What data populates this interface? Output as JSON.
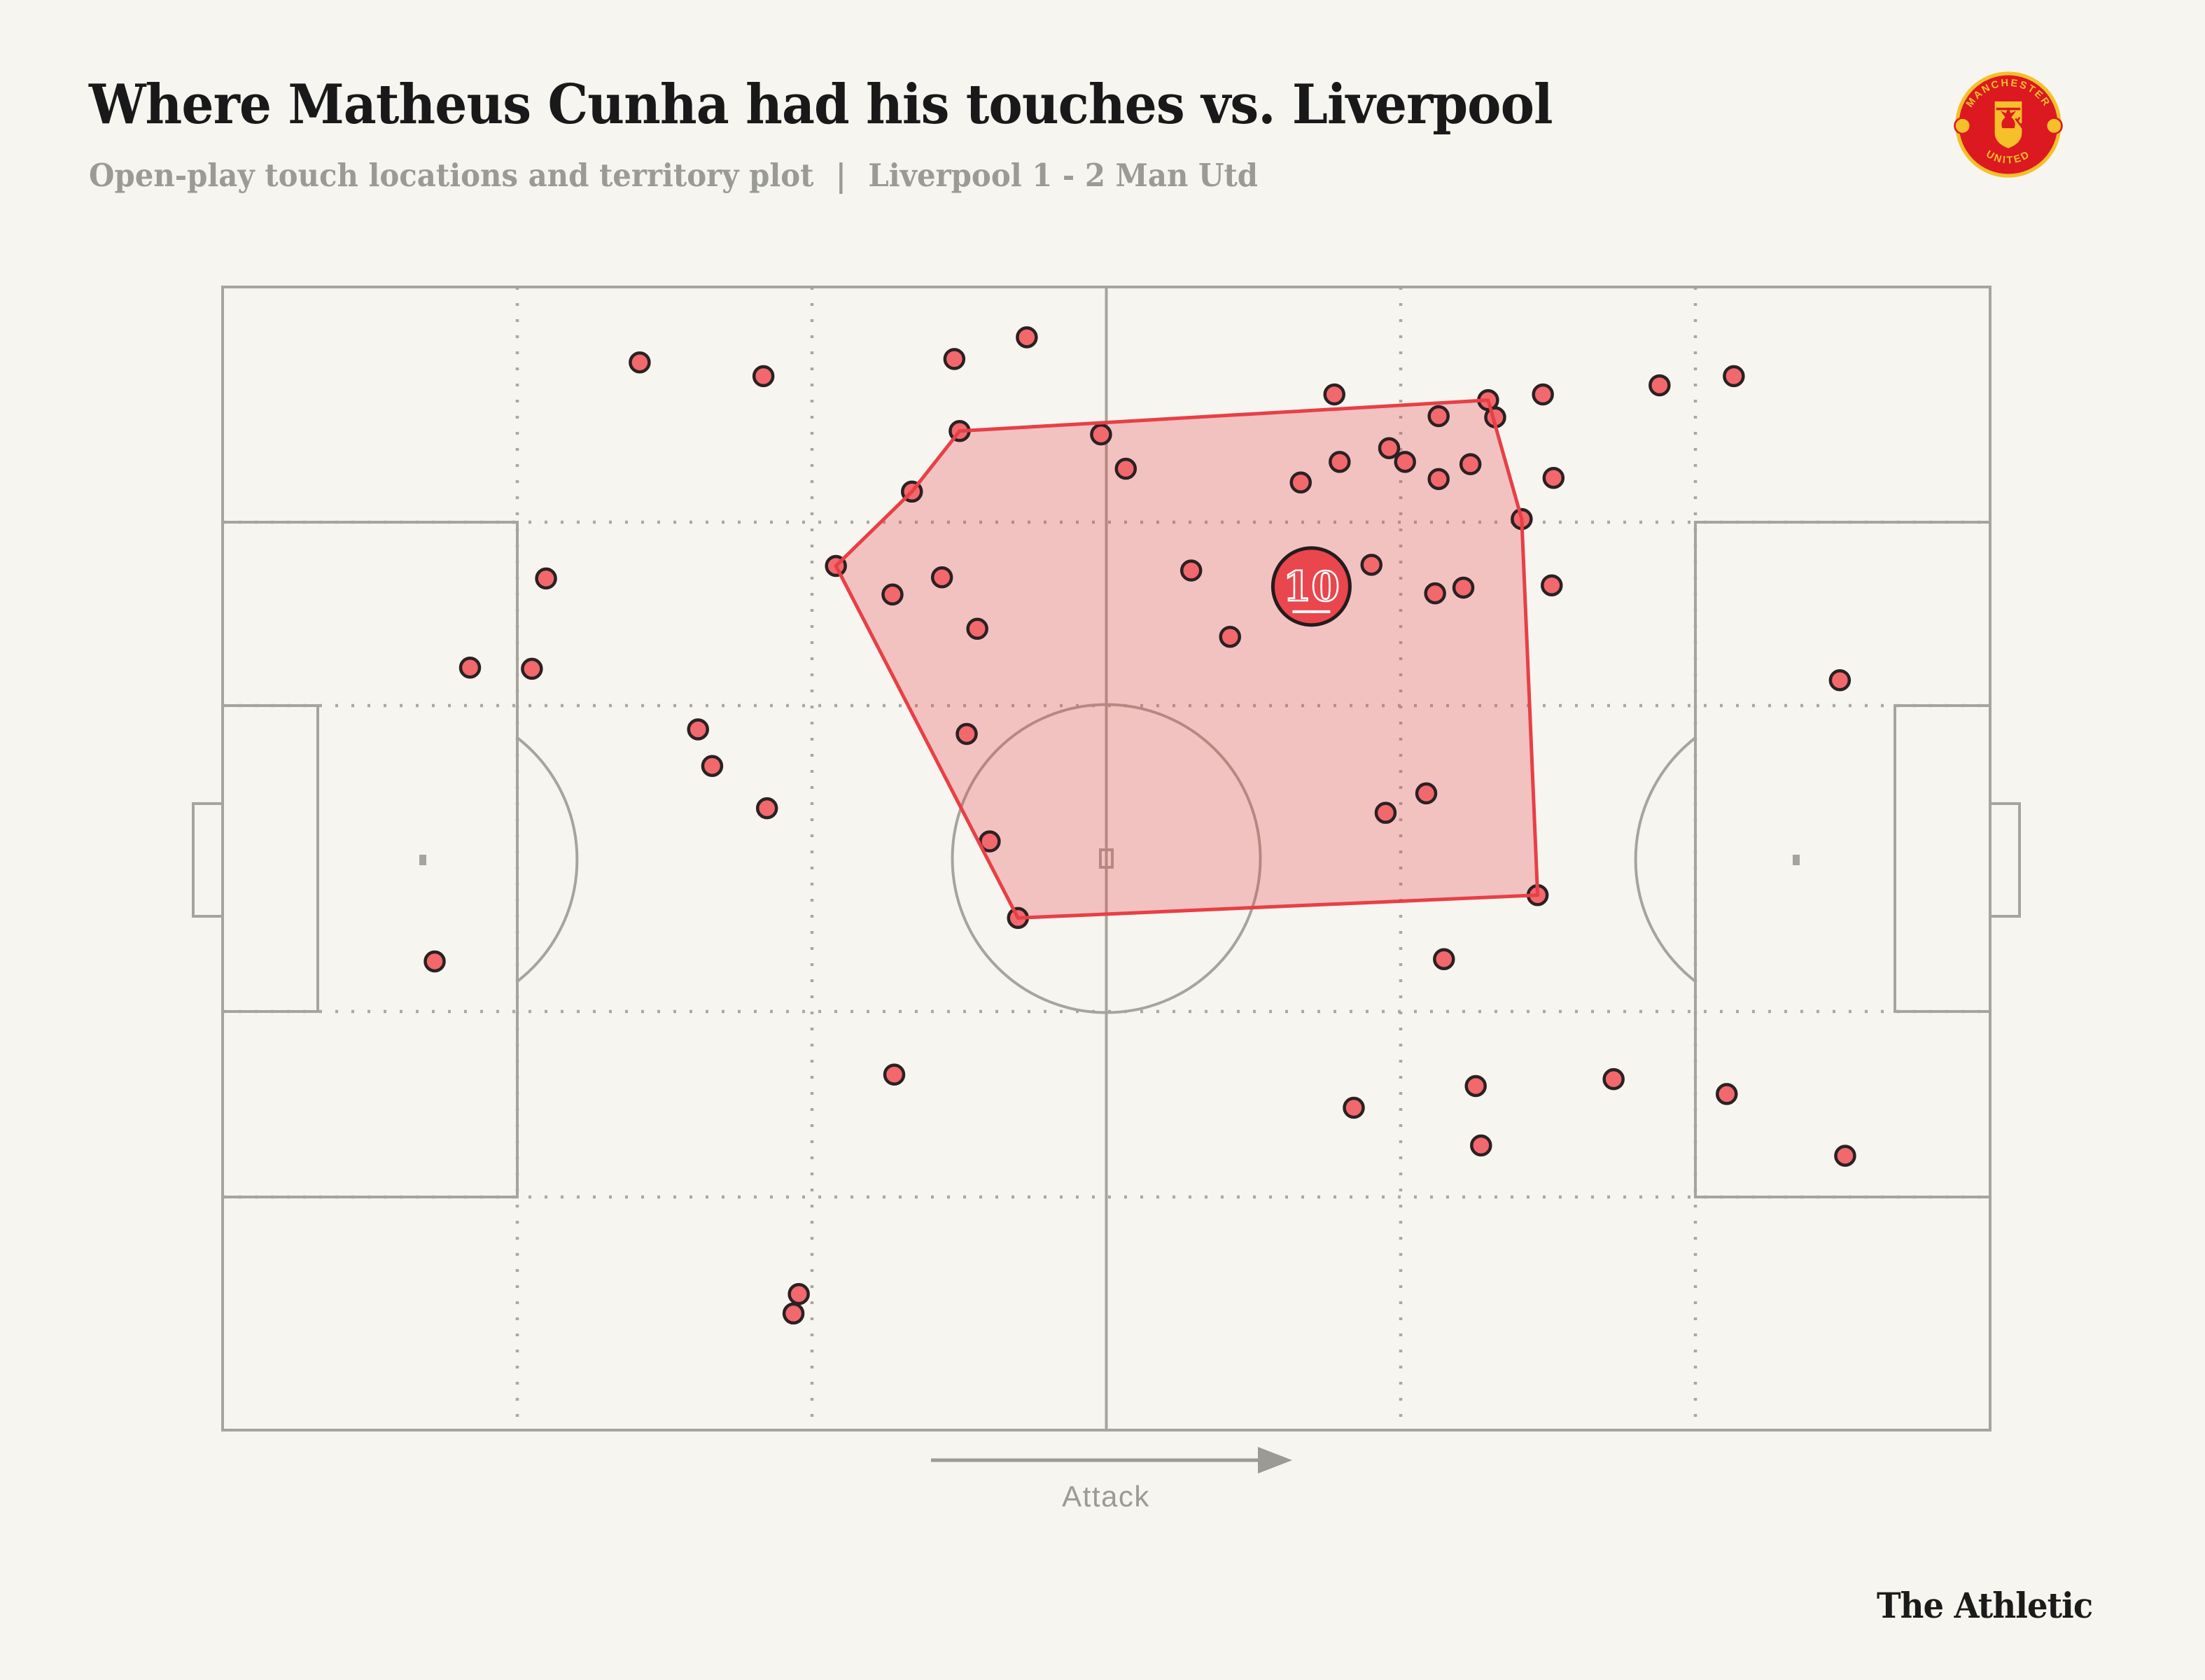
{
  "header": {
    "title": "Where Matheus Cunha had his touches vs. Liverpool",
    "subtitle_plot": "Open-play touch locations and territory plot",
    "subtitle_divider": "|",
    "subtitle_score": "Liverpool 1 - 2 Man Utd"
  },
  "crest": {
    "top_text": "MANCHESTER",
    "bottom_text": "UNITED"
  },
  "pitch": {
    "attack_label": "Attack"
  },
  "footer": {
    "brand": "The Athletic"
  },
  "colors": {
    "background": "#f6f5f0",
    "pitch_line": "#a5a49d",
    "grid_dotted": "#a9a8a1",
    "touch_fill": "#f1686d",
    "touch_stroke": "#2b2123",
    "territory_fill": "rgba(232,60,66,0.27)",
    "territory_stroke": "#e83f46",
    "badge_fill": "#e9464d",
    "badge_stroke": "#241c1e",
    "badge_text": "#ffffff",
    "title_text": "#191919",
    "subtitle_text": "#9b9b95",
    "arrow": "#9b9a94",
    "brand_text": "#1b1b19",
    "crest_red": "#dc1820",
    "crest_yellow": "#f5c029"
  },
  "chart_data": {
    "type": "scatter",
    "title": "Where Matheus Cunha had his touches vs. Liverpool",
    "subtitle": "Open-play touch locations and territory plot | Liverpool 1 - 2 Man Utd",
    "coordinate_system": "percent of pitch; x: 0 = own goal line (left) to 100 = opposition goal line (right); y: 0 = top touchline to 100 = bottom touchline",
    "attack_direction": "left-to-right",
    "player": {
      "number": "10",
      "name": "Matheus Cunha"
    },
    "average_position_marker": {
      "x": 61.6,
      "y": 26.2,
      "label": "10"
    },
    "territory_polygon": [
      [
        41.7,
        12.6
      ],
      [
        71.6,
        9.9
      ],
      [
        73.5,
        20.3
      ],
      [
        74.4,
        53.2
      ],
      [
        45.0,
        55.2
      ],
      [
        34.7,
        24.4
      ],
      [
        39.0,
        17.9
      ]
    ],
    "touches": [
      [
        23.6,
        6.6
      ],
      [
        30.6,
        7.8
      ],
      [
        41.4,
        6.3
      ],
      [
        45.5,
        4.4
      ],
      [
        62.9,
        9.4
      ],
      [
        68.8,
        11.3
      ],
      [
        71.6,
        9.9
      ],
      [
        72.0,
        11.4
      ],
      [
        74.7,
        9.4
      ],
      [
        81.3,
        8.6
      ],
      [
        85.5,
        7.8
      ],
      [
        41.7,
        12.6
      ],
      [
        49.7,
        12.9
      ],
      [
        51.1,
        15.9
      ],
      [
        39.0,
        17.9
      ],
      [
        61.0,
        17.1
      ],
      [
        63.2,
        15.3
      ],
      [
        66.0,
        14.1
      ],
      [
        66.9,
        15.3
      ],
      [
        68.8,
        16.8
      ],
      [
        70.6,
        15.5
      ],
      [
        75.3,
        16.7
      ],
      [
        73.5,
        20.3
      ],
      [
        34.7,
        24.4
      ],
      [
        37.9,
        26.9
      ],
      [
        40.7,
        25.4
      ],
      [
        42.7,
        29.9
      ],
      [
        18.3,
        25.5
      ],
      [
        14.0,
        33.3
      ],
      [
        17.5,
        33.4
      ],
      [
        54.8,
        24.8
      ],
      [
        57.0,
        30.6
      ],
      [
        65.0,
        24.3
      ],
      [
        68.6,
        26.8
      ],
      [
        70.2,
        26.3
      ],
      [
        75.2,
        26.1
      ],
      [
        26.9,
        38.7
      ],
      [
        27.7,
        41.9
      ],
      [
        30.8,
        45.6
      ],
      [
        42.1,
        39.1
      ],
      [
        43.4,
        48.5
      ],
      [
        65.8,
        46.0
      ],
      [
        68.1,
        44.3
      ],
      [
        91.5,
        34.4
      ],
      [
        45.0,
        55.2
      ],
      [
        69.1,
        58.8
      ],
      [
        74.4,
        53.2
      ],
      [
        12.0,
        59.0
      ],
      [
        38.0,
        68.9
      ],
      [
        64.0,
        71.8
      ],
      [
        70.9,
        69.9
      ],
      [
        71.2,
        75.1
      ],
      [
        78.7,
        69.3
      ],
      [
        85.1,
        70.6
      ],
      [
        91.8,
        76.0
      ],
      [
        32.6,
        88.1
      ],
      [
        32.3,
        89.8
      ]
    ]
  }
}
